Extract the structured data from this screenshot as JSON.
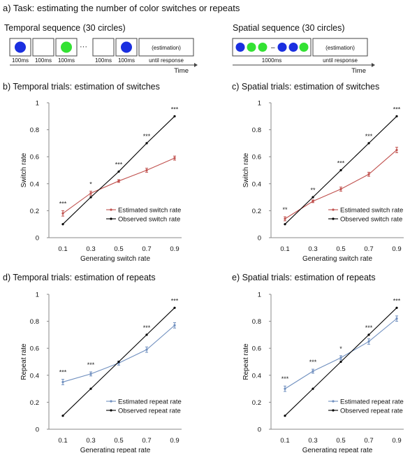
{
  "task": {
    "title": "a) Task: estimating the number of color switches or repeats",
    "temporal": {
      "label": "Temporal sequence (30 circles)",
      "durations": [
        "100ms",
        "100ms",
        "100ms",
        "100ms",
        "100ms"
      ],
      "ellipsis": "···",
      "estimation": "(estimation)",
      "until": "until response",
      "time": "Time"
    },
    "spatial": {
      "label": "Spatial sequence (30 circles)",
      "duration": "1000ms",
      "ellipsis": "–",
      "estimation": "(estimation)",
      "until": "until response",
      "time": "Time"
    },
    "colors": {
      "blue": "#1a2fe0",
      "green": "#33e233"
    }
  },
  "chart_data": [
    {
      "panel": "b",
      "type": "line",
      "title": "b) Temporal trials: estimation of switches",
      "xlabel": "Generating switch rate",
      "ylabel": "Switch rate",
      "x": [
        0.1,
        0.3,
        0.5,
        0.7,
        0.9
      ],
      "x_ticks": [
        "0.1",
        "0.3",
        "0.5",
        "0.7",
        "0.9"
      ],
      "ylim": [
        0,
        1
      ],
      "y_ticks": [
        "0",
        "0.2",
        "0.4",
        "0.6",
        "0.8",
        "1"
      ],
      "legend": "lower-right",
      "series": [
        {
          "name": "Estimated switch rate",
          "values": [
            0.18,
            0.33,
            0.42,
            0.5,
            0.59
          ],
          "errors": [
            0.02,
            0.015,
            0.01,
            0.015,
            0.015
          ],
          "color": "#c0504d"
        },
        {
          "name": "Observed switch rate",
          "values": [
            0.1,
            0.3,
            0.49,
            0.7,
            0.9
          ],
          "color": "#000000"
        }
      ],
      "significance": [
        "***",
        "*",
        "***",
        "***",
        "***"
      ]
    },
    {
      "panel": "c",
      "type": "line",
      "title": "c) Spatial trials: estimation of switches",
      "xlabel": "Generating switch rate",
      "ylabel": "Switch rate",
      "x": [
        0.1,
        0.3,
        0.5,
        0.7,
        0.9
      ],
      "x_ticks": [
        "0.1",
        "0.3",
        "0.5",
        "0.7",
        "0.9"
      ],
      "ylim": [
        0,
        1
      ],
      "y_ticks": [
        "0",
        "0.2",
        "0.4",
        "0.6",
        "0.8",
        "1"
      ],
      "legend": "lower-right",
      "series": [
        {
          "name": "Estimated switch rate",
          "values": [
            0.14,
            0.27,
            0.36,
            0.47,
            0.65
          ],
          "errors": [
            0.015,
            0.01,
            0.015,
            0.015,
            0.02
          ],
          "color": "#c0504d"
        },
        {
          "name": "Observed switch rate",
          "values": [
            0.1,
            0.3,
            0.5,
            0.7,
            0.9
          ],
          "color": "#000000"
        }
      ],
      "significance": [
        "**",
        "**",
        "***",
        "***",
        "***"
      ]
    },
    {
      "panel": "d",
      "type": "line",
      "title": "d) Temporal trials: estimation of repeats",
      "xlabel": "Generating repeat rate",
      "ylabel": "Repeat rate",
      "x": [
        0.1,
        0.3,
        0.5,
        0.7,
        0.9
      ],
      "x_ticks": [
        "0.1",
        "0.3",
        "0.5",
        "0.7",
        "0.9"
      ],
      "ylim": [
        0,
        1
      ],
      "y_ticks": [
        "0",
        "0.2",
        "0.4",
        "0.6",
        "0.8",
        "1"
      ],
      "legend": "lower-right",
      "series": [
        {
          "name": "Estimated repeat rate",
          "values": [
            0.35,
            0.41,
            0.49,
            0.59,
            0.77
          ],
          "errors": [
            0.02,
            0.015,
            0.015,
            0.02,
            0.02
          ],
          "color": "#6f8fbf"
        },
        {
          "name": "Observed repeat rate",
          "values": [
            0.1,
            0.3,
            0.5,
            0.7,
            0.9
          ],
          "color": "#000000"
        }
      ],
      "significance": [
        "***",
        "***",
        "",
        "***",
        "***"
      ]
    },
    {
      "panel": "e",
      "type": "line",
      "title": "e) Spatial trials: estimation of repeats",
      "xlabel": "Generating repeat rate",
      "ylabel": "Repeat rate",
      "x": [
        0.1,
        0.3,
        0.5,
        0.7,
        0.9
      ],
      "x_ticks": [
        "0.1",
        "0.3",
        "0.5",
        "0.7",
        "0.9"
      ],
      "ylim": [
        0,
        1
      ],
      "y_ticks": [
        "0",
        "0.2",
        "0.4",
        "0.6",
        "0.8",
        "1"
      ],
      "legend": "lower-right",
      "series": [
        {
          "name": "Estimated repeat rate",
          "values": [
            0.3,
            0.43,
            0.53,
            0.65,
            0.82
          ],
          "errors": [
            0.02,
            0.015,
            0.015,
            0.02,
            0.02
          ],
          "color": "#6f8fbf"
        },
        {
          "name": "Observed repeat rate",
          "values": [
            0.1,
            0.3,
            0.5,
            0.7,
            0.9
          ],
          "color": "#000000"
        }
      ],
      "significance": [
        "***",
        "***",
        "*",
        "***",
        "***"
      ]
    }
  ]
}
